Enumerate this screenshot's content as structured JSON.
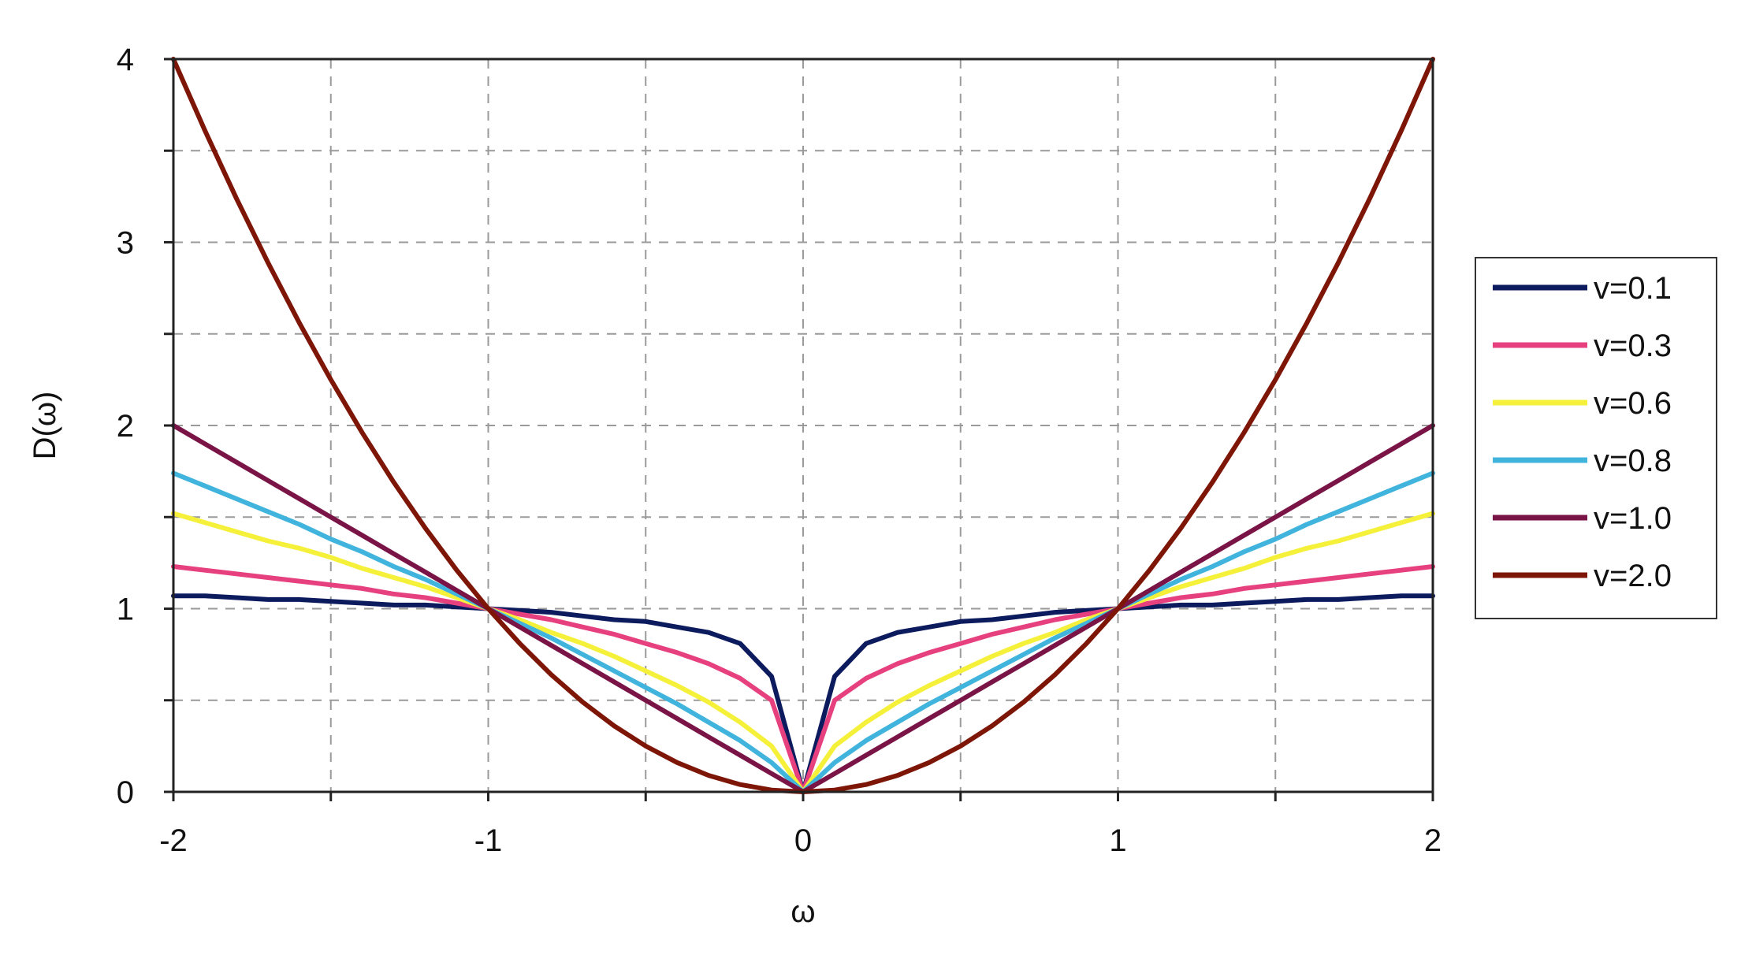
{
  "chart_data": {
    "type": "line",
    "title": "",
    "xlabel": "ω",
    "ylabel": "D(ω)",
    "xlim": [
      -2,
      2
    ],
    "ylim": [
      0,
      4
    ],
    "x_ticks": [
      -2,
      -1.5,
      -1,
      -0.5,
      0,
      0.5,
      1,
      1.5,
      2
    ],
    "x_tick_labels": [
      "-2",
      "",
      "-1",
      "",
      "0",
      "",
      "1",
      "",
      "2"
    ],
    "y_ticks": [
      0,
      0.5,
      1,
      1.5,
      2,
      2.5,
      3,
      3.5,
      4
    ],
    "y_tick_labels": [
      "0",
      "",
      "1",
      "",
      "2",
      "",
      "3",
      "",
      "4"
    ],
    "grid": true,
    "legend_position": "right",
    "x": [
      -2,
      -1.9,
      -1.8,
      -1.7,
      -1.6,
      -1.5,
      -1.4,
      -1.3,
      -1.2,
      -1.1,
      -1,
      -0.9,
      -0.8,
      -0.7,
      -0.6,
      -0.5,
      -0.4,
      -0.3,
      -0.2,
      -0.1,
      0,
      0.1,
      0.2,
      0.3,
      0.4,
      0.5,
      0.6,
      0.7,
      0.8,
      0.9,
      1,
      1.1,
      1.2,
      1.3,
      1.4,
      1.5,
      1.6,
      1.7,
      1.8,
      1.9,
      2
    ],
    "series": [
      {
        "name": "v=0.1",
        "color": "#0c1a5e",
        "values": [
          1.07,
          1.07,
          1.06,
          1.05,
          1.05,
          1.04,
          1.03,
          1.02,
          1.02,
          1.01,
          1.0,
          0.99,
          0.98,
          0.96,
          0.94,
          0.93,
          0.9,
          0.87,
          0.81,
          0.63,
          0.0,
          0.63,
          0.81,
          0.87,
          0.9,
          0.93,
          0.94,
          0.96,
          0.98,
          0.99,
          1.0,
          1.01,
          1.02,
          1.02,
          1.03,
          1.04,
          1.05,
          1.05,
          1.06,
          1.07,
          1.07
        ]
      },
      {
        "name": "v=0.3",
        "color": "#e6407e",
        "values": [
          1.23,
          1.21,
          1.19,
          1.17,
          1.15,
          1.13,
          1.11,
          1.08,
          1.06,
          1.03,
          1.0,
          0.97,
          0.94,
          0.9,
          0.86,
          0.81,
          0.76,
          0.7,
          0.62,
          0.5,
          0.0,
          0.5,
          0.62,
          0.7,
          0.76,
          0.81,
          0.86,
          0.9,
          0.94,
          0.97,
          1.0,
          1.03,
          1.06,
          1.08,
          1.11,
          1.13,
          1.15,
          1.17,
          1.19,
          1.21,
          1.23
        ]
      },
      {
        "name": "v=0.6",
        "color": "#f5f03a",
        "values": [
          1.52,
          1.47,
          1.42,
          1.37,
          1.33,
          1.28,
          1.22,
          1.17,
          1.12,
          1.06,
          1.0,
          0.94,
          0.87,
          0.81,
          0.74,
          0.66,
          0.58,
          0.49,
          0.38,
          0.25,
          0.0,
          0.25,
          0.38,
          0.49,
          0.58,
          0.66,
          0.74,
          0.81,
          0.87,
          0.94,
          1.0,
          1.06,
          1.12,
          1.17,
          1.22,
          1.28,
          1.33,
          1.37,
          1.42,
          1.47,
          1.52
        ]
      },
      {
        "name": "v=0.8",
        "color": "#40b4dc",
        "values": [
          1.74,
          1.67,
          1.6,
          1.53,
          1.46,
          1.38,
          1.31,
          1.23,
          1.16,
          1.08,
          1.0,
          0.92,
          0.84,
          0.75,
          0.66,
          0.57,
          0.48,
          0.38,
          0.28,
          0.16,
          0.0,
          0.16,
          0.28,
          0.38,
          0.48,
          0.57,
          0.66,
          0.75,
          0.84,
          0.92,
          1.0,
          1.08,
          1.16,
          1.23,
          1.31,
          1.38,
          1.46,
          1.53,
          1.6,
          1.67,
          1.74
        ]
      },
      {
        "name": "v=1.0",
        "color": "#7a1447",
        "values": [
          2.0,
          1.9,
          1.8,
          1.7,
          1.6,
          1.5,
          1.4,
          1.3,
          1.2,
          1.1,
          1.0,
          0.9,
          0.8,
          0.7,
          0.6,
          0.5,
          0.4,
          0.3,
          0.2,
          0.1,
          0.0,
          0.1,
          0.2,
          0.3,
          0.4,
          0.5,
          0.6,
          0.7,
          0.8,
          0.9,
          1.0,
          1.1,
          1.2,
          1.3,
          1.4,
          1.5,
          1.6,
          1.7,
          1.8,
          1.9,
          2.0
        ]
      },
      {
        "name": "v=2.0",
        "color": "#7e1608",
        "values": [
          4.0,
          3.61,
          3.24,
          2.89,
          2.56,
          2.25,
          1.96,
          1.69,
          1.44,
          1.21,
          1.0,
          0.81,
          0.64,
          0.49,
          0.36,
          0.25,
          0.16,
          0.09,
          0.04,
          0.01,
          0.0,
          0.01,
          0.04,
          0.09,
          0.16,
          0.25,
          0.36,
          0.49,
          0.64,
          0.81,
          1.0,
          1.21,
          1.44,
          1.69,
          1.96,
          2.25,
          2.56,
          2.89,
          3.24,
          3.61,
          4.0
        ]
      }
    ]
  }
}
